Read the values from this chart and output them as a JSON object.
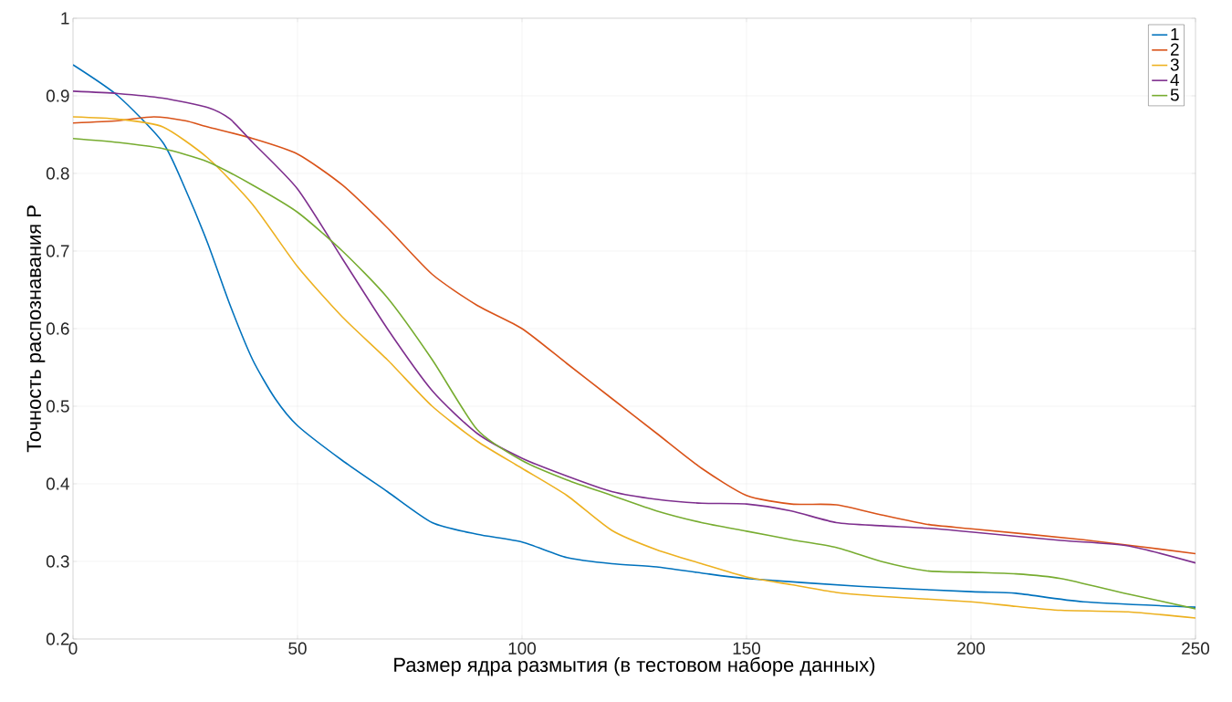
{
  "chart_data": {
    "type": "line",
    "xlabel": "Размер ядра размытия (в тестовом наборе данных)",
    "ylabel": "Точность распознавания P",
    "xlim": [
      0,
      250
    ],
    "ylim": [
      0.2,
      1
    ],
    "xticks": [
      0,
      50,
      100,
      150,
      200,
      250
    ],
    "yticks": [
      0.2,
      0.3,
      0.4,
      0.5,
      0.6,
      0.7,
      0.8,
      0.9,
      1
    ],
    "grid": true,
    "legend": "top right",
    "line_style": "solid",
    "marker": "none",
    "series": [
      {
        "name": "1",
        "color": "#0072bd",
        "x": [
          0,
          10,
          20,
          25,
          30,
          35,
          40,
          45,
          50,
          60,
          70,
          80,
          90,
          100,
          110,
          120,
          130,
          140,
          150,
          175,
          200,
          210,
          225,
          250
        ],
        "values": [
          0.94,
          0.9,
          0.84,
          0.78,
          0.71,
          0.63,
          0.56,
          0.51,
          0.475,
          0.43,
          0.39,
          0.35,
          0.335,
          0.325,
          0.305,
          0.297,
          0.293,
          0.285,
          0.278,
          0.268,
          0.261,
          0.259,
          0.248,
          0.241
        ]
      },
      {
        "name": "2",
        "color": "#d95319",
        "x": [
          0,
          10,
          18,
          25,
          30,
          40,
          50,
          60,
          70,
          80,
          90,
          100,
          110,
          120,
          130,
          140,
          150,
          160,
          170,
          180,
          190,
          200,
          225,
          250
        ],
        "values": [
          0.865,
          0.868,
          0.873,
          0.868,
          0.86,
          0.845,
          0.825,
          0.785,
          0.73,
          0.67,
          0.63,
          0.6,
          0.555,
          0.51,
          0.465,
          0.42,
          0.385,
          0.374,
          0.373,
          0.36,
          0.348,
          0.342,
          0.328,
          0.31
        ]
      },
      {
        "name": "3",
        "color": "#edb120",
        "x": [
          0,
          10,
          20,
          30,
          40,
          50,
          60,
          70,
          80,
          90,
          100,
          110,
          120,
          130,
          140,
          150,
          160,
          170,
          180,
          200,
          210,
          220,
          235,
          250
        ],
        "values": [
          0.873,
          0.87,
          0.86,
          0.82,
          0.76,
          0.68,
          0.615,
          0.56,
          0.5,
          0.455,
          0.42,
          0.385,
          0.34,
          0.315,
          0.297,
          0.28,
          0.27,
          0.26,
          0.255,
          0.248,
          0.242,
          0.237,
          0.235,
          0.227
        ]
      },
      {
        "name": "4",
        "color": "#7e2f8e",
        "x": [
          0,
          10,
          20,
          30,
          35,
          40,
          50,
          60,
          70,
          80,
          90,
          100,
          110,
          120,
          130,
          140,
          150,
          160,
          170,
          180,
          190,
          200,
          220,
          235,
          250
        ],
        "values": [
          0.906,
          0.903,
          0.897,
          0.885,
          0.87,
          0.84,
          0.78,
          0.69,
          0.6,
          0.52,
          0.465,
          0.433,
          0.41,
          0.39,
          0.38,
          0.375,
          0.374,
          0.365,
          0.35,
          0.346,
          0.343,
          0.338,
          0.327,
          0.32,
          0.298
        ]
      },
      {
        "name": "5",
        "color": "#77ac30",
        "x": [
          0,
          10,
          20,
          30,
          40,
          50,
          60,
          70,
          80,
          90,
          100,
          110,
          120,
          130,
          140,
          150,
          160,
          170,
          180,
          190,
          200,
          210,
          220,
          235,
          250
        ],
        "values": [
          0.845,
          0.84,
          0.832,
          0.815,
          0.785,
          0.75,
          0.7,
          0.64,
          0.56,
          0.47,
          0.43,
          0.405,
          0.385,
          0.365,
          0.35,
          0.339,
          0.328,
          0.318,
          0.3,
          0.288,
          0.286,
          0.284,
          0.278,
          0.258,
          0.239
        ]
      }
    ]
  }
}
